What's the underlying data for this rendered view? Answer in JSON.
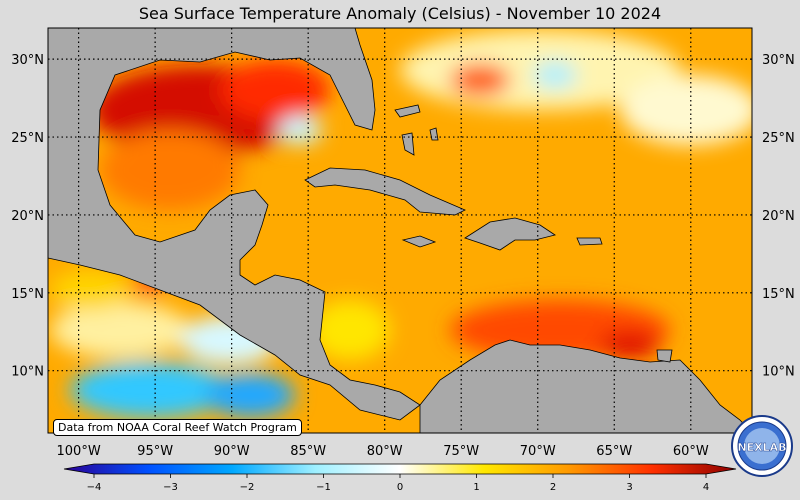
{
  "title": "Sea Surface Temperature Anomaly (Celsius) - November 10 2024",
  "attribution": "Data from NOAA Coral Reef Watch Program",
  "logo_text": "NEXLAB",
  "map": {
    "lon_range": [
      -102,
      -56
    ],
    "lat_range": [
      6,
      32
    ],
    "lon_ticks": [
      {
        "value": -100,
        "label": "100°W"
      },
      {
        "value": -95,
        "label": "95°W"
      },
      {
        "value": -90,
        "label": "90°W"
      },
      {
        "value": -85,
        "label": "85°W"
      },
      {
        "value": -80,
        "label": "80°W"
      },
      {
        "value": -75,
        "label": "75°W"
      },
      {
        "value": -70,
        "label": "70°W"
      },
      {
        "value": -65,
        "label": "65°W"
      },
      {
        "value": -60,
        "label": "60°W"
      }
    ],
    "lat_ticks": [
      {
        "value": 30,
        "label": "30°N"
      },
      {
        "value": 25,
        "label": "25°N"
      },
      {
        "value": 20,
        "label": "20°N"
      },
      {
        "value": 15,
        "label": "15°N"
      },
      {
        "value": 10,
        "label": "10°N"
      }
    ],
    "grid": "dotted",
    "land_color": "#a9a9a9",
    "ocean_base_color": "#ffaa00"
  },
  "colorbar": {
    "range": [
      -4,
      4
    ],
    "ticks": [
      {
        "value": -4,
        "label": "−4"
      },
      {
        "value": -3,
        "label": "−3"
      },
      {
        "value": -2,
        "label": "−2"
      },
      {
        "value": -1,
        "label": "−1"
      },
      {
        "value": 0,
        "label": "0"
      },
      {
        "value": 1,
        "label": "1"
      },
      {
        "value": 2,
        "label": "2"
      },
      {
        "value": 3,
        "label": "3"
      },
      {
        "value": 4,
        "label": "4"
      }
    ],
    "colors": [
      "#2a0094",
      "#0050ff",
      "#00a8ff",
      "#a0f0ff",
      "#ffffff",
      "#ffe800",
      "#ff9a00",
      "#ff3000",
      "#8c0000"
    ]
  }
}
